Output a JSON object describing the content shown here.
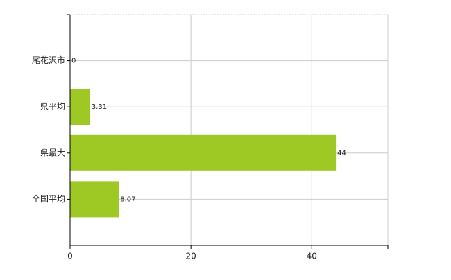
{
  "chart_data": {
    "type": "hbar",
    "categories": [
      "尾花沢市",
      "県平均",
      "県最大",
      "全国平均"
    ],
    "values": [
      0,
      3.31,
      44,
      8.07
    ],
    "color": "#9ec925",
    "xlim": [
      0,
      52.6
    ],
    "xticks": [
      0,
      20,
      40
    ],
    "grid": true,
    "show_values": true
  }
}
